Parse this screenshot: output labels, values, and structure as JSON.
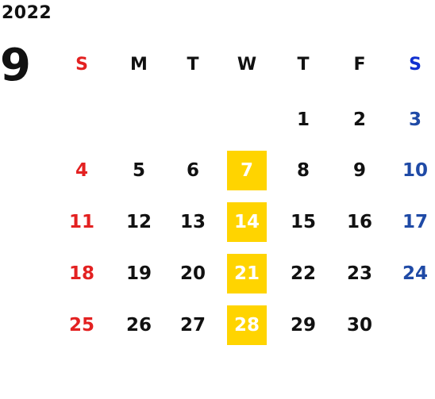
{
  "calendar": {
    "year": "2022",
    "month": "9",
    "weekday_headers": [
      "S",
      "M",
      "T",
      "W",
      "T",
      "F",
      "S"
    ],
    "weeks": [
      [
        "",
        "",
        "",
        "",
        "1",
        "2",
        "3"
      ],
      [
        "4",
        "5",
        "6",
        "7",
        "8",
        "9",
        "10"
      ],
      [
        "11",
        "12",
        "13",
        "14",
        "15",
        "16",
        "17"
      ],
      [
        "18",
        "19",
        "20",
        "21",
        "22",
        "23",
        "24"
      ],
      [
        "25",
        "26",
        "27",
        "28",
        "29",
        "30",
        ""
      ]
    ],
    "highlighted_days": [
      "7",
      "14",
      "21",
      "28"
    ]
  },
  "colors": {
    "sunday": "#e32121",
    "saturday": "#1f4aa6",
    "saturday_header": "#1030d0",
    "highlight_bg": "#ffd400",
    "highlight_text": "#ffffff",
    "text": "#111111"
  }
}
